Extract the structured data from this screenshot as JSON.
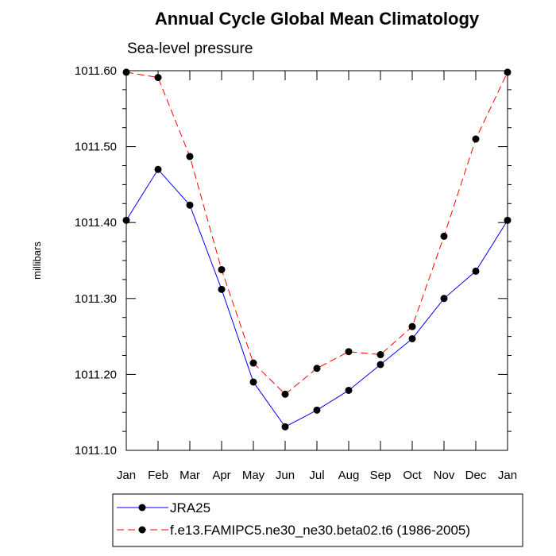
{
  "chart_data": {
    "type": "line",
    "title": "Annual Cycle Global Mean Climatology",
    "subtitle": "Sea-level pressure",
    "xlabel": "",
    "ylabel": "millibars",
    "categories": [
      "Jan",
      "Feb",
      "Mar",
      "Apr",
      "May",
      "Jun",
      "Jul",
      "Aug",
      "Sep",
      "Oct",
      "Nov",
      "Dec",
      "Jan"
    ],
    "ylim": [
      1011.1,
      1011.6
    ],
    "yticks": [
      1011.1,
      1011.2,
      1011.3,
      1011.4,
      1011.5,
      1011.6
    ],
    "ytick_labels": [
      "1011.10",
      "1011.20",
      "1011.30",
      "1011.40",
      "1011.50",
      "1011.60"
    ],
    "grid": false,
    "legend_position": "bottom",
    "series": [
      {
        "name": "JRA25",
        "color": "#0000ff",
        "line_style": "solid",
        "marker": "dot",
        "values": [
          1011.403,
          1011.47,
          1011.423,
          1011.312,
          1011.19,
          1011.131,
          1011.153,
          1011.179,
          1011.213,
          1011.247,
          1011.3,
          1011.336,
          1011.403
        ]
      },
      {
        "name": "f.e13.FAMIPC5.ne30_ne30.beta02.t6 (1986-2005)",
        "color": "#ff0000",
        "line_style": "dashed",
        "marker": "dot",
        "values": [
          1011.598,
          1011.591,
          1011.487,
          1011.338,
          1011.215,
          1011.174,
          1011.208,
          1011.23,
          1011.226,
          1011.263,
          1011.382,
          1011.51,
          1011.598
        ]
      }
    ]
  }
}
